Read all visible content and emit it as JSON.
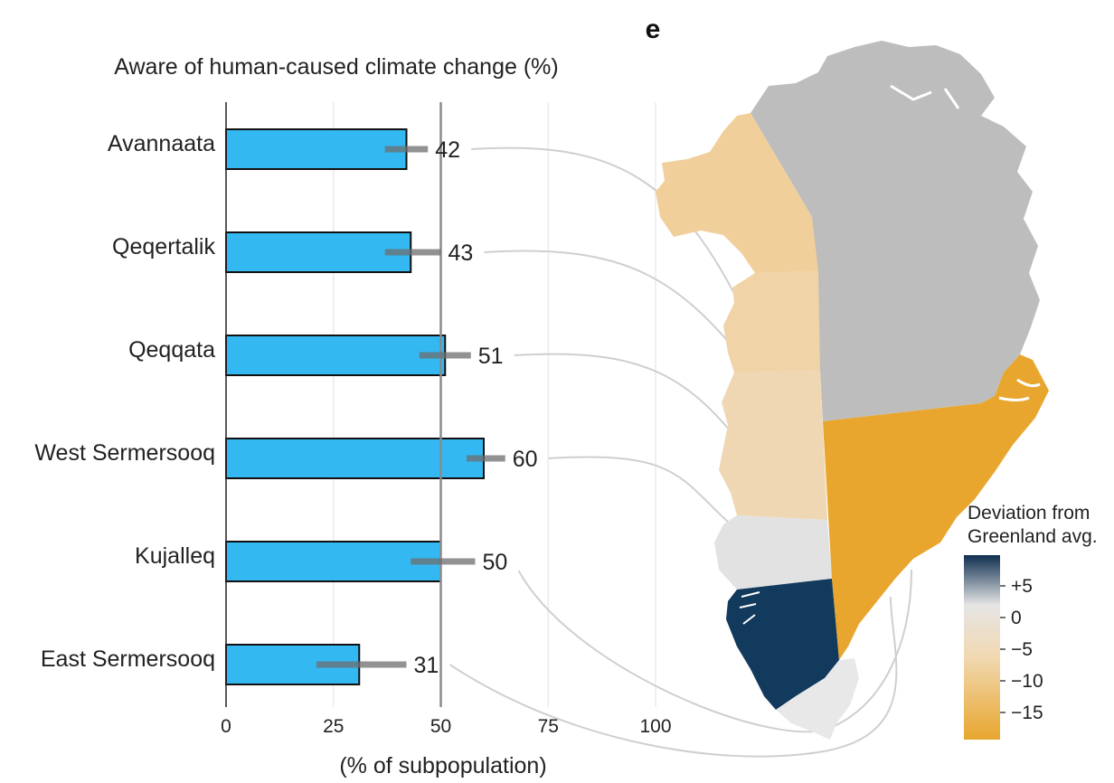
{
  "panel_label": "e",
  "chart_data": {
    "type": "bar",
    "orientation": "horizontal",
    "title": "Aware of human-caused climate change (%)",
    "xlabel": "(% of subpopulation)",
    "categories": [
      "Avannaata",
      "Qeqertalik",
      "Qeqqata",
      "West Sermersooq",
      "Kujalleq",
      "East Sermersooq"
    ],
    "values": [
      42,
      43,
      51,
      60,
      50,
      31
    ],
    "value_labels": [
      "42",
      "43",
      "51",
      "60",
      "50",
      "31"
    ],
    "error_low": [
      37,
      37,
      45,
      56,
      43,
      21
    ],
    "error_high": [
      47,
      50,
      57,
      65,
      58,
      42
    ],
    "xlim": [
      0,
      100
    ],
    "xticks": [
      0,
      25,
      50,
      75,
      100
    ],
    "xtick_labels": [
      "0",
      "25",
      "50",
      "75",
      "100"
    ],
    "reference_line": 50,
    "grid": "vertical",
    "colors": {
      "bar": "#33b8f2",
      "bar_edge": "#111111",
      "error": "#6e6e6e",
      "reference": "#8a8a8a",
      "grid": "#e6e6e6"
    }
  },
  "map": {
    "region_order": [
      "Avannaata",
      "Qeqertalik",
      "Qeqqata",
      "West Sermersooq",
      "Kujalleq",
      "East Sermersooq"
    ],
    "region_colors": {
      "north": "#bdbdbd",
      "northwest": "#f1cf9a",
      "west_mid": "#f0d3a6",
      "qeqqata": "#efd7b4",
      "west_sermersooq": "#e2e2e2",
      "kujalleq": "#123a5c",
      "east_sermersooq": "#e8a62e",
      "southeast": "#e8e8e8"
    }
  },
  "legend": {
    "title_line1": "Deviation from",
    "title_line2": "Greenland avg.",
    "tick_labels": [
      "+5",
      "0",
      "−5",
      "−10",
      "−15"
    ],
    "colors": [
      "#0f2f50",
      "#e5e5e5",
      "#f1d9b2",
      "#e8a62e"
    ]
  }
}
